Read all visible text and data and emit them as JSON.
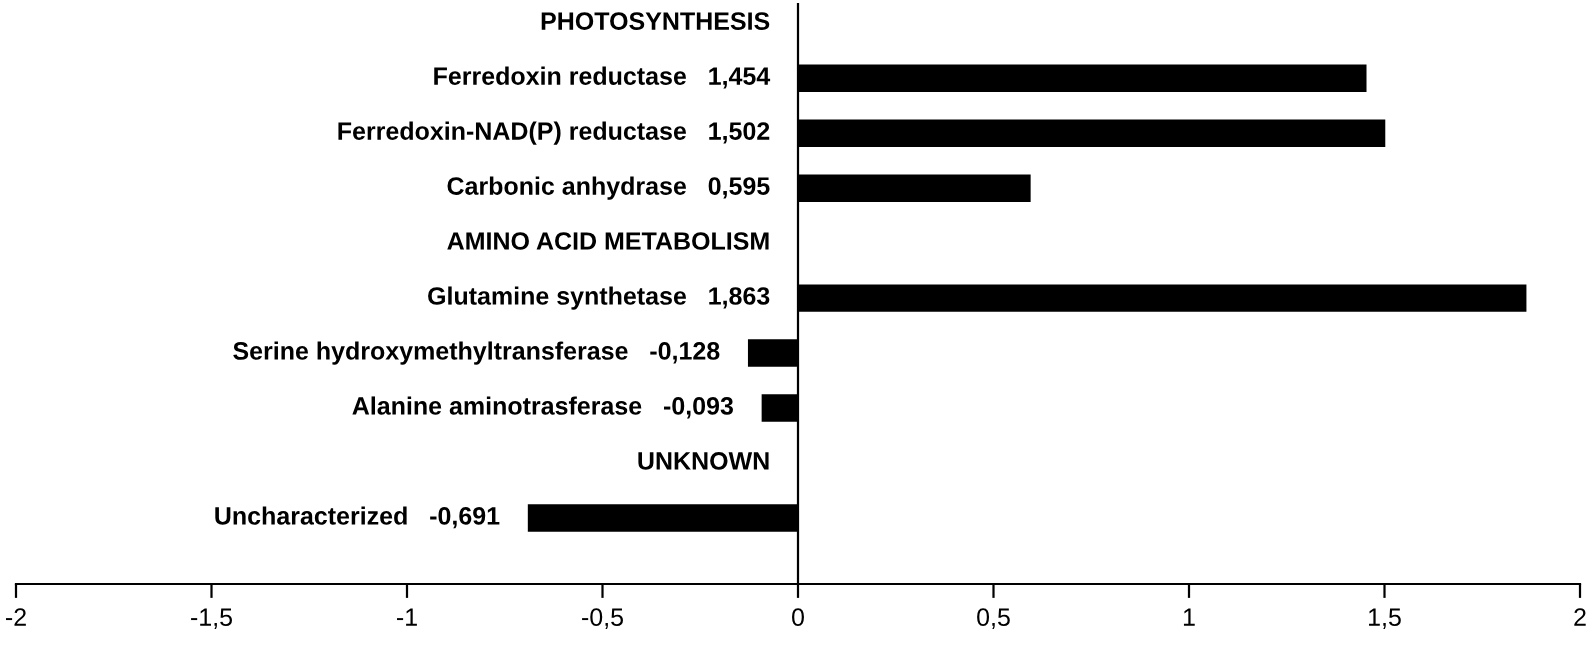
{
  "chart_data": {
    "type": "bar",
    "orientation": "horizontal",
    "categories": [
      "PHOTOSYNTHESIS",
      "Ferredoxin reductase",
      "Ferredoxin-NAD(P) reductase",
      "Carbonic anhydrase",
      "AMINO ACID METABOLISM",
      "Glutamine synthetase",
      "Serine hydroxymethyltransferase",
      "Alanine aminotrasferase",
      "UNKNOWN",
      "Uncharacterized"
    ],
    "values": [
      null,
      1.454,
      1.502,
      0.595,
      null,
      1.863,
      -0.128,
      -0.093,
      null,
      -0.691
    ],
    "value_labels": [
      null,
      "1,454",
      "1,502",
      "0,595",
      null,
      "1,863",
      "-0,128",
      "-0,093",
      null,
      "-0,691"
    ],
    "color": "#000000",
    "xlim": [
      -2,
      2
    ],
    "xticks": [
      -2,
      {
        "value": -1.5,
        "label": "-1,5"
      },
      -1,
      {
        "value": -0.5,
        "label": "-0,5"
      },
      0,
      {
        "value": 0.5,
        "label": "0,5"
      },
      1,
      {
        "value": 1.5,
        "label": "1,5"
      },
      2
    ],
    "tick_labels": "x",
    "grid": false,
    "legend": false
  }
}
